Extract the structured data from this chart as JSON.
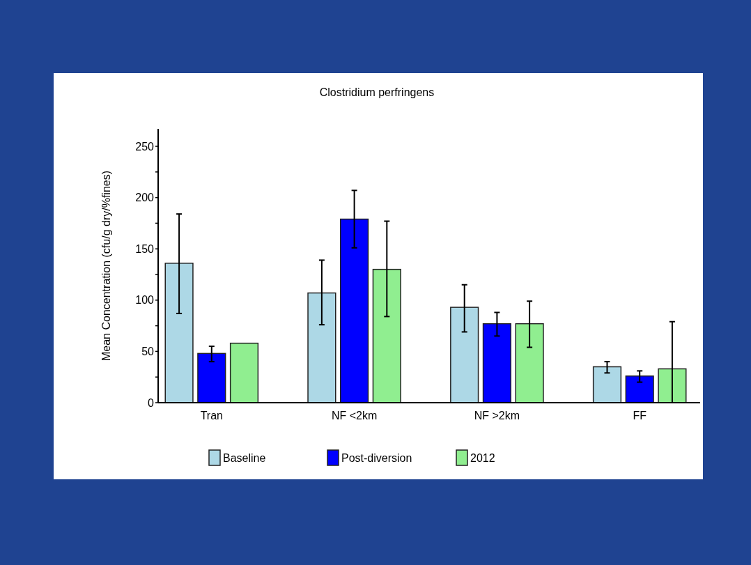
{
  "chart_data": {
    "type": "bar",
    "title": "Clostridium perfringens",
    "ylabel": "Mean Concentration (cfu/g dry/%fines)",
    "categories": [
      "Tran",
      "NF <2km",
      "NF >2km",
      "FF"
    ],
    "series": [
      {
        "name": "Baseline",
        "color": "#add8e6",
        "values": [
          136,
          107,
          93,
          35
        ],
        "errors": [
          [
            87,
            184
          ],
          [
            76,
            139
          ],
          [
            69,
            115
          ],
          [
            29,
            40
          ]
        ]
      },
      {
        "name": "Post-diversion",
        "color": "#0000ff",
        "values": [
          48,
          179,
          77,
          26
        ],
        "errors": [
          [
            40,
            55
          ],
          [
            151,
            207
          ],
          [
            65,
            88
          ],
          [
            20,
            31
          ]
        ]
      },
      {
        "name": "2012",
        "color": "#90ee90",
        "values": [
          58,
          130,
          77,
          33
        ],
        "errors": [
          null,
          [
            84,
            177
          ],
          [
            54,
            99
          ],
          [
            0,
            79
          ]
        ]
      }
    ],
    "ylim": [
      0,
      267
    ],
    "yticks": [
      0,
      {
        "value": 25,
        "label": null
      },
      50,
      {
        "value": 75,
        "label": null
      },
      100,
      {
        "value": 125,
        "label": null
      },
      150,
      {
        "value": 175,
        "label": null
      },
      200,
      {
        "value": 225,
        "label": null
      },
      250
    ],
    "legend": "bottom",
    "grid": false
  }
}
